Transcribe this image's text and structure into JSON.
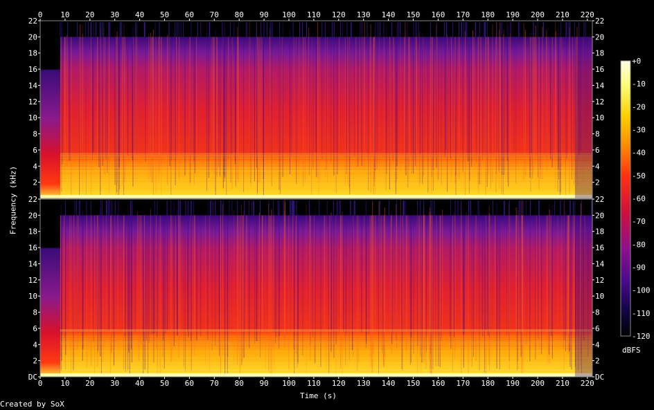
{
  "chart_data": {
    "type": "heatmap",
    "title": "",
    "xlabel": "Time (s)",
    "ylabel": "Frequency (kHz)",
    "x_ticks": [
      "0",
      "10",
      "20",
      "30",
      "40",
      "50",
      "60",
      "70",
      "80",
      "90",
      "100",
      "110",
      "120",
      "130",
      "140",
      "150",
      "160",
      "170",
      "180",
      "190",
      "200",
      "210",
      "220"
    ],
    "xlim": [
      0,
      222
    ],
    "channels": [
      {
        "y_ticks": [
          "22",
          "20",
          "18",
          "16",
          "14",
          "12",
          "10",
          "8",
          "6",
          "4",
          "2"
        ],
        "ylim_khz": [
          0,
          22
        ]
      },
      {
        "y_ticks": [
          "22",
          "20",
          "18",
          "16",
          "14",
          "12",
          "10",
          "8",
          "6",
          "4",
          "2",
          "DC"
        ],
        "ylim_khz": [
          0,
          22
        ]
      }
    ],
    "colorbar": {
      "unit": "dBFS",
      "ticks": [
        "+0",
        "-10",
        "-20",
        "-30",
        "-40",
        "-50",
        "-60",
        "-70",
        "-80",
        "-90",
        "-100",
        "-110",
        "-120"
      ],
      "range_db": [
        -120,
        0
      ]
    },
    "features": {
      "intro_end_s": 8,
      "intro_bandwidth_khz": 16,
      "lowpass_cutoff_khz": 20,
      "bright_band_top_khz": 6,
      "outro_start_s": 215
    },
    "colors": {
      "background": "#000000",
      "low": "#0d0027",
      "mid_low": "#4a0a8c",
      "mid": "#c4177a",
      "mid_high": "#f0321a",
      "high": "#ff9a06",
      "peak": "#ffffc8"
    }
  },
  "footer": {
    "credit": "Created by SoX"
  }
}
